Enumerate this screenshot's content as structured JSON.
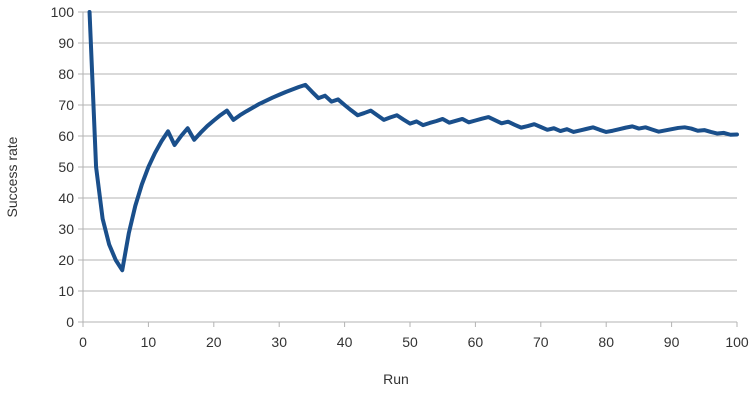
{
  "chart_data": {
    "type": "line",
    "title": "",
    "xlabel": "Run",
    "ylabel": "Success rate",
    "xlim": [
      0,
      100
    ],
    "ylim": [
      0,
      100
    ],
    "xticks": [
      0,
      10,
      20,
      30,
      40,
      50,
      60,
      70,
      80,
      90,
      100
    ],
    "yticks": [
      0,
      10,
      20,
      30,
      40,
      50,
      60,
      70,
      80,
      90,
      100
    ],
    "grid": {
      "horizontal": true,
      "vertical": false
    },
    "legend": "none",
    "colors": {
      "line": "#1a4f8b",
      "grid": "#b3b3b3",
      "axis": "#b3b3b3"
    },
    "series": [
      {
        "x": [
          1,
          2,
          3,
          4,
          5,
          6,
          7,
          8,
          9,
          10,
          11,
          12,
          13,
          14,
          15,
          16,
          17,
          18,
          19,
          20,
          21,
          22,
          23,
          24,
          25,
          26,
          27,
          28,
          29,
          30,
          31,
          32,
          33,
          34,
          35,
          36,
          37,
          38,
          39,
          40,
          41,
          42,
          43,
          44,
          45,
          46,
          47,
          48,
          49,
          50,
          51,
          52,
          53,
          54,
          55,
          56,
          57,
          58,
          59,
          60,
          61,
          62,
          63,
          64,
          65,
          66,
          67,
          68,
          69,
          70,
          71,
          72,
          73,
          74,
          75,
          76,
          77,
          78,
          79,
          80,
          81,
          82,
          83,
          84,
          85,
          86,
          87,
          88,
          89,
          90,
          91,
          92,
          93,
          94,
          95,
          96,
          97,
          98,
          99,
          100
        ],
        "values": [
          100,
          50,
          33.3,
          25,
          20,
          16.7,
          28.6,
          37.5,
          44.4,
          50,
          54.5,
          58.3,
          61.5,
          57.1,
          60,
          62.5,
          58.8,
          61.1,
          63.2,
          65,
          66.7,
          68.2,
          65.2,
          66.7,
          68,
          69.2,
          70.4,
          71.4,
          72.4,
          73.3,
          74.2,
          75,
          75.8,
          76.5,
          74.3,
          72.2,
          73,
          71.1,
          71.8,
          70,
          68.3,
          66.7,
          67.4,
          68.2,
          66.7,
          65.2,
          66,
          66.7,
          65.3,
          64,
          64.7,
          63.5,
          64.2,
          64.8,
          65.5,
          64.3,
          64.9,
          65.5,
          64.4,
          65,
          65.6,
          66.1,
          65.1,
          64.1,
          64.6,
          63.6,
          62.7,
          63.2,
          63.8,
          62.9,
          62,
          62.5,
          61.6,
          62.2,
          61.3,
          61.8,
          62.3,
          62.8,
          62,
          61.3,
          61.7,
          62.2,
          62.7,
          63.1,
          62.4,
          62.8,
          62.1,
          61.4,
          61.8,
          62.2,
          62.6,
          62.8,
          62.4,
          61.7,
          61.9,
          61.3,
          60.8,
          61,
          60.4,
          60.5
        ]
      }
    ]
  }
}
